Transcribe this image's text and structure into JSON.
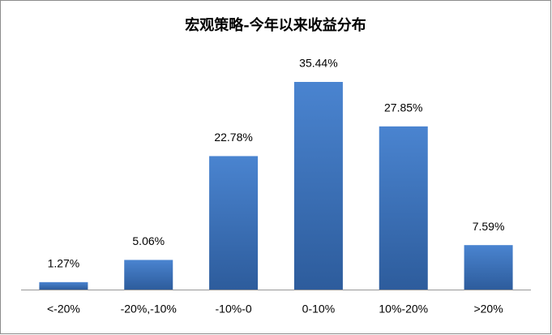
{
  "chart_data": {
    "type": "bar",
    "title": "宏观策略-今年以来收益分布",
    "categories": [
      "<-20%",
      "-20%,-10%",
      "-10%-0",
      "0-10%",
      "10%-20%",
      ">20%"
    ],
    "values": [
      1.27,
      5.06,
      22.78,
      35.44,
      27.85,
      7.59
    ],
    "value_labels": [
      "1.27%",
      "5.06%",
      "22.78%",
      "35.44%",
      "27.85%",
      "7.59%"
    ],
    "color": "#3a6fb8"
  }
}
